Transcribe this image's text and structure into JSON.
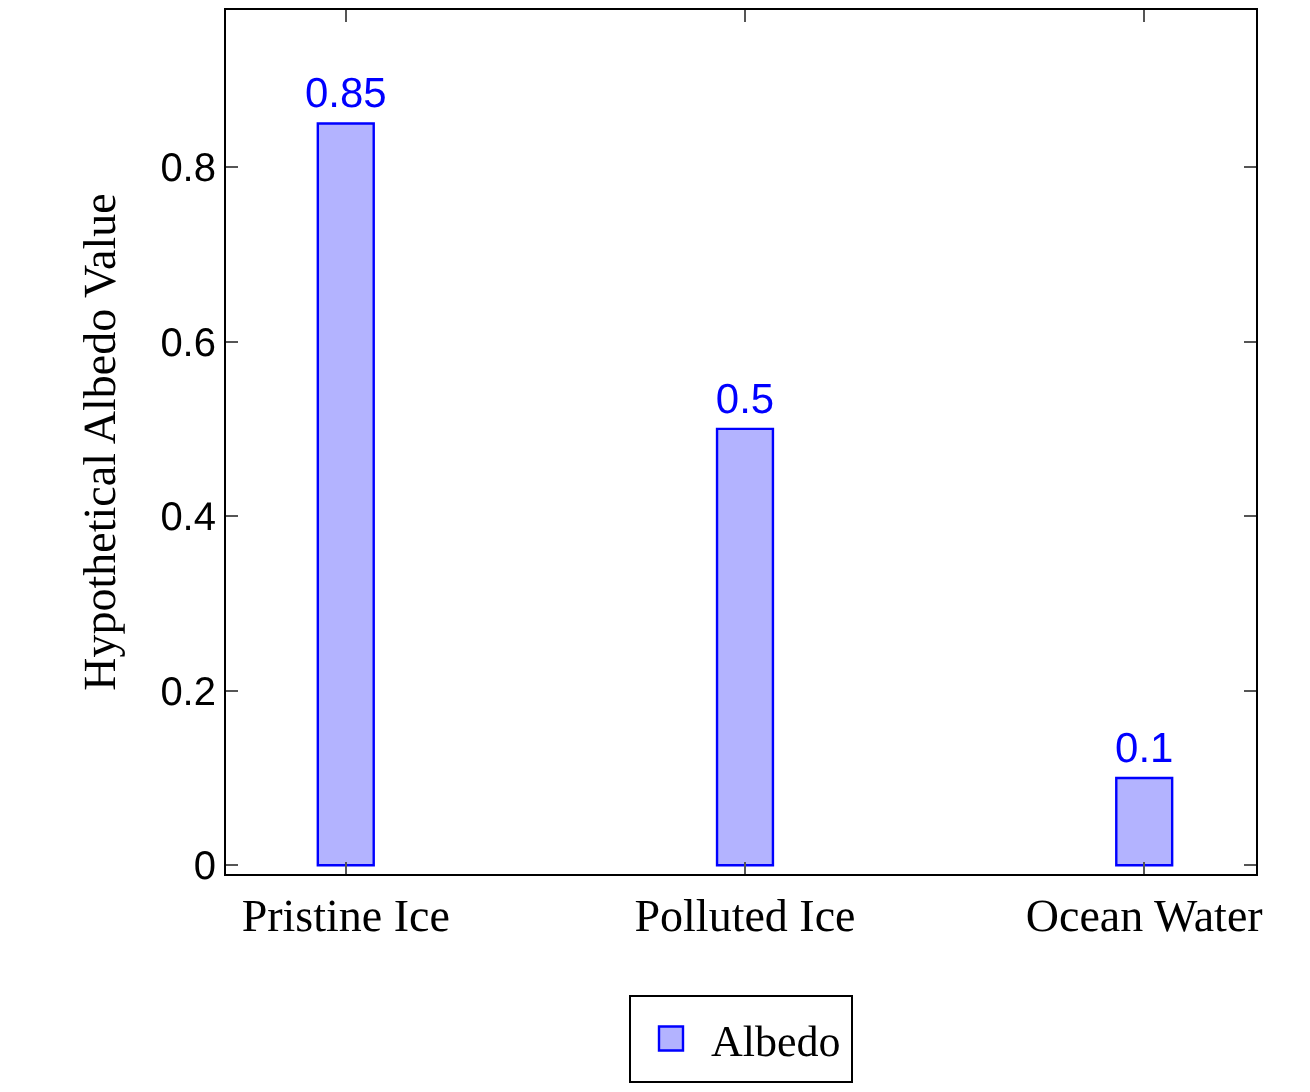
{
  "chart_data": {
    "type": "bar",
    "ylabel": "Hypothetical Albedo Value",
    "categories": [
      "Pristine Ice",
      "Polluted Ice",
      "Ocean Water"
    ],
    "series": [
      {
        "name": "Albedo",
        "color": "#b3b3ff",
        "values": [
          0.85,
          0.5,
          0.1
        ]
      }
    ],
    "ylim": [
      -0.01,
      0.98
    ],
    "yticks": [
      0,
      0.2,
      0.4,
      0.6,
      0.8
    ],
    "data_labels": true,
    "legend": "bottom"
  }
}
